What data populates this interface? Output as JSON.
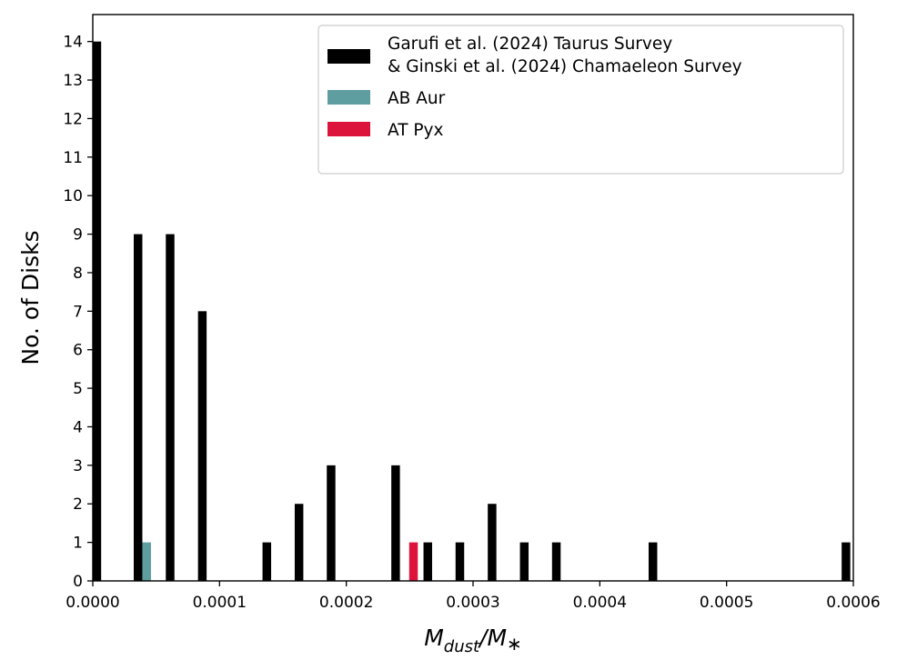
{
  "chart_data": {
    "type": "bar",
    "title": "",
    "xlabel": {
      "base": "M",
      "sub": "dust",
      "sep": "/M",
      "star": "∗"
    },
    "ylabel": "No. of Disks",
    "xlim": [
      0,
      0.0006
    ],
    "ylim": [
      0,
      14.7
    ],
    "x_ticks": [
      0,
      0.0001,
      0.0002,
      0.0003,
      0.0004,
      0.0005,
      0.0006
    ],
    "x_tick_labels": [
      "0.0000",
      "0.0001",
      "0.0002",
      "0.0003",
      "0.0004",
      "0.0005",
      "0.0006"
    ],
    "y_ticks": [
      0,
      1,
      2,
      3,
      4,
      5,
      6,
      7,
      8,
      9,
      10,
      11,
      12,
      13,
      14
    ],
    "y_tick_labels": [
      "0",
      "1",
      "2",
      "3",
      "4",
      "5",
      "6",
      "7",
      "8",
      "9",
      "10",
      "11",
      "12",
      "13",
      "14"
    ],
    "grid": false,
    "legend_position": "top-right",
    "bar_width": 6.8e-06,
    "series": [
      {
        "name": "Garufi et al. (2024) Taurus Survey\n& Ginski et al. (2024) Chamaeleon Survey",
        "name_lines": [
          "Garufi et al. (2024) Taurus Survey",
          "& Ginski et al. (2024) Chamaeleon Survey"
        ],
        "color": "#000000",
        "bins": [
          {
            "x": 3.2e-06,
            "count": 14
          },
          {
            "x": 3.57e-05,
            "count": 9
          },
          {
            "x": 6.1e-05,
            "count": 9
          },
          {
            "x": 8.64e-05,
            "count": 7
          },
          {
            "x": 0.0001373,
            "count": 1
          },
          {
            "x": 0.0001627,
            "count": 2
          },
          {
            "x": 0.000188,
            "count": 3
          },
          {
            "x": 0.0002389,
            "count": 3
          },
          {
            "x": 0.0002643,
            "count": 1
          },
          {
            "x": 0.0002896,
            "count": 1
          },
          {
            "x": 0.000315,
            "count": 2
          },
          {
            "x": 0.0003404,
            "count": 1
          },
          {
            "x": 0.0003657,
            "count": 1
          },
          {
            "x": 0.0004419,
            "count": 1
          },
          {
            "x": 0.0005942,
            "count": 1
          }
        ]
      },
      {
        "name": "AB Aur",
        "name_lines": [
          "AB Aur"
        ],
        "color": "#5f9ea0",
        "bins": [
          {
            "x": 4.25e-05,
            "count": 1
          }
        ]
      },
      {
        "name": "AT Pyx",
        "name_lines": [
          "AT Pyx"
        ],
        "color": "#dc143c",
        "bins": [
          {
            "x": 0.000253,
            "count": 1
          }
        ]
      }
    ]
  }
}
